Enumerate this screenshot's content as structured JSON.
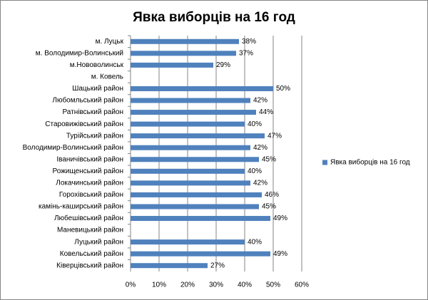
{
  "chart_data": {
    "type": "bar",
    "orientation": "horizontal",
    "title": "Явка виборців на 16 год",
    "categories": [
      "м. Луцьк",
      "м. Володимир-Волинський",
      "м.Нововолинськ",
      "м. Ковель",
      "Шацький район",
      "Любомльський район",
      "Ратнівський район",
      "Старовижівський район",
      "Турійський район",
      "Володимир-Волинський район",
      "Іваничівський  район",
      "Рожищенський район",
      "Локачинський район",
      "Горохівський район",
      "камінь-каширський район",
      "Любешівський район",
      "Маневицький район",
      "Луцький район",
      "Ковельський район",
      "Ківерцівський район"
    ],
    "series": [
      {
        "name": "Явка виборців  на 16 год",
        "color": "#4f81bd",
        "values": [
          38,
          37,
          29,
          null,
          50,
          42,
          44,
          40,
          47,
          42,
          45,
          40,
          42,
          46,
          45,
          49,
          null,
          40,
          49,
          27
        ],
        "value_labels": [
          "38%",
          "37%",
          "29%",
          null,
          "50%",
          "42%",
          "44%",
          "40%",
          "47%",
          "42%",
          "45%",
          "40%",
          "42%",
          "46%",
          "45%",
          "49%",
          null,
          "40%",
          "49%",
          "27%"
        ]
      }
    ],
    "xlim": [
      0,
      60
    ],
    "xticks": [
      {
        "value": 0,
        "label": "0%"
      },
      {
        "value": 10,
        "label": "10%"
      },
      {
        "value": 20,
        "label": "20%"
      },
      {
        "value": 30,
        "label": "30%"
      },
      {
        "value": 40,
        "label": "40%"
      },
      {
        "value": 50,
        "label": "50%"
      },
      {
        "value": 60,
        "label": "60%"
      }
    ],
    "grid": true,
    "legend": "right"
  }
}
